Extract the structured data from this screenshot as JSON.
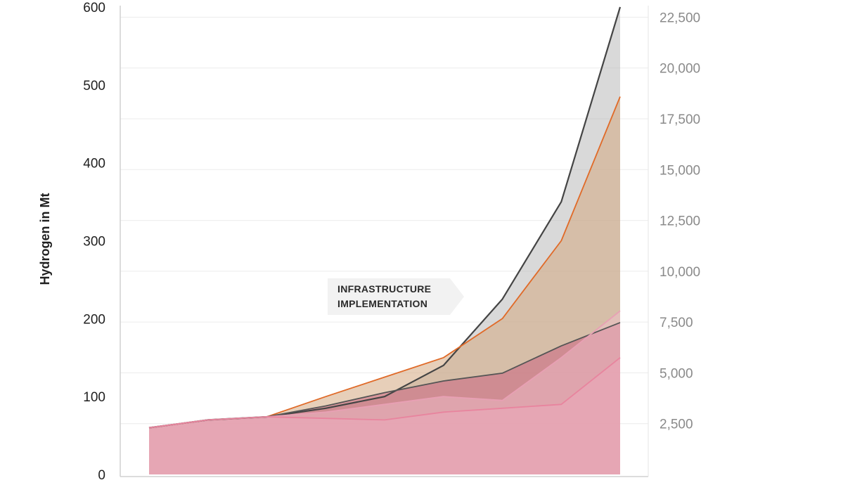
{
  "chart_data": {
    "type": "area",
    "title": "",
    "xlabel": "",
    "ylabel": "Hydrogen in Mt",
    "ylim": [
      0,
      600
    ],
    "yticks": [
      0,
      100,
      200,
      300,
      400,
      500,
      600
    ],
    "ytick_labels": [
      "0",
      "100",
      "200",
      "300",
      "400",
      "500",
      "600"
    ],
    "y2lim": [
      0,
      23000
    ],
    "y2ticks": [
      2500,
      5000,
      7500,
      10000,
      12500,
      15000,
      17500,
      20000,
      22500
    ],
    "y2tick_labels": [
      "2,500",
      "5,000",
      "7,500",
      "10,000",
      "12,500",
      "15,000",
      "17,500",
      "20,000",
      "22,500"
    ],
    "grid": true,
    "x": [
      0,
      1,
      2,
      3,
      4,
      5,
      6,
      7,
      8
    ],
    "series": [
      {
        "values": [
          60,
          70,
          74,
          85,
          100,
          140,
          225,
          350,
          600
        ],
        "color": "#444444",
        "fill": "#b9b9b9"
      },
      {
        "values": [
          60,
          70,
          74,
          100,
          125,
          150,
          200,
          300,
          485
        ],
        "color": "#e06a28",
        "fill": "#d4a780"
      },
      {
        "values": [
          60,
          70,
          74,
          88,
          105,
          120,
          130,
          165,
          195
        ],
        "color": "#555555",
        "fill": "#c74f78"
      },
      {
        "values": [
          60,
          70,
          74,
          80,
          90,
          100,
          95,
          150,
          210
        ],
        "color": "#e8a0b4",
        "fill": "#f2c2cf"
      },
      {
        "values": [
          60,
          70,
          74,
          72,
          70,
          80,
          85,
          90,
          150
        ],
        "color": "#e8849e",
        "fill": "#f0a8bc"
      }
    ],
    "annotations": [
      {
        "line1": "INFRASTRUCTURE",
        "line2": "IMPLEMENTATION",
        "x": 3.5,
        "y": 225
      }
    ]
  }
}
